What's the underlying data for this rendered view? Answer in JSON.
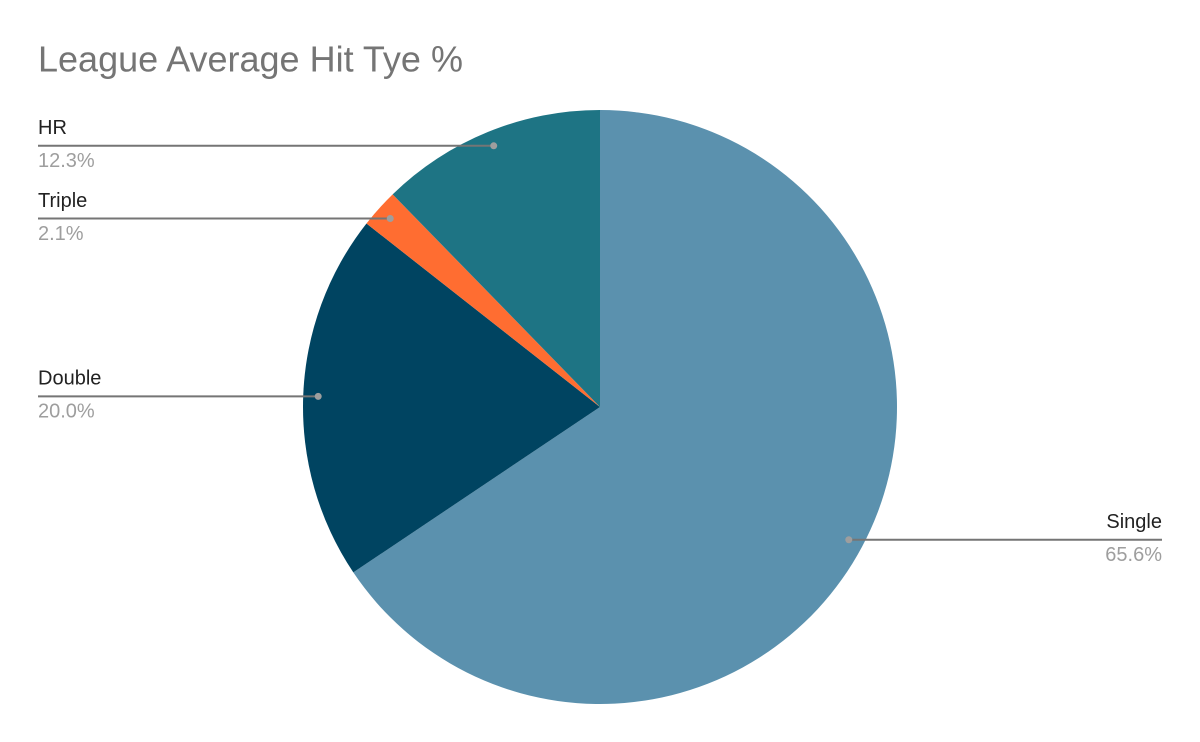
{
  "chart_data": {
    "type": "pie",
    "title": "League Average Hit Tye %",
    "categories": [
      "Single",
      "Double",
      "Triple",
      "HR"
    ],
    "values": [
      65.6,
      20.0,
      2.1,
      12.3
    ],
    "value_labels": [
      "65.6%",
      "20.0%",
      "2.1%",
      "12.3%"
    ],
    "colors": [
      "#5b91ae",
      "#004461",
      "#ff6d31",
      "#1e7484"
    ]
  }
}
